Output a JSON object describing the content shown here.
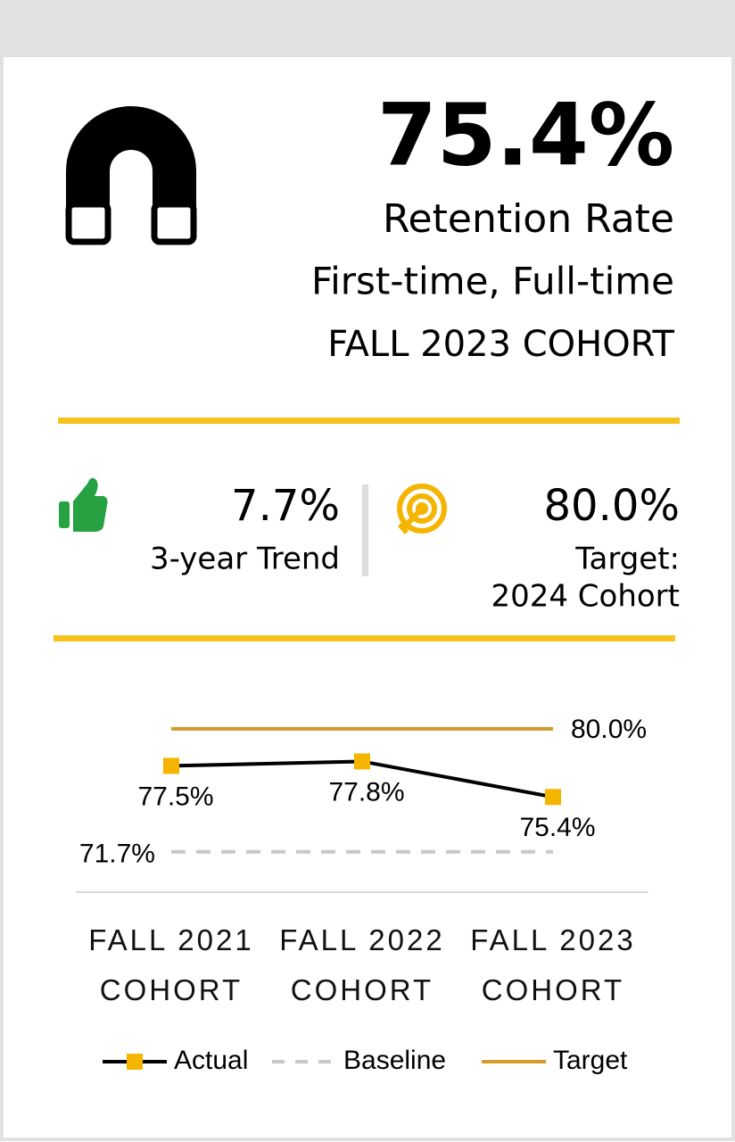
{
  "header": {
    "value": "75.4%",
    "title": "Retention Rate",
    "subtitle": "First-time, Full-time",
    "cohort": "FALL 2023 COHORT"
  },
  "stats": [
    {
      "value": "7.7%",
      "label": "3-year Trend"
    },
    {
      "value": "80.0%",
      "label": [
        "Target:",
        "2024 Cohort"
      ]
    }
  ],
  "chart_data": {
    "type": "line",
    "categories": [
      "FALL 2021 COHORT",
      "FALL 2022 COHORT",
      "FALL 2023 COHORT"
    ],
    "ylim": [
      70,
      81.5
    ],
    "legend": "bottom",
    "series": [
      {
        "name": "Target",
        "color": "#d39a2c",
        "dash": false,
        "values": [
          80.0,
          80.0,
          80.0
        ],
        "value_labels": [
          null,
          null,
          "80.0%"
        ],
        "label_position": "right"
      },
      {
        "name": "Baseline",
        "color": "#c8c8c8",
        "dash": true,
        "values": [
          71.7,
          71.7,
          71.7
        ],
        "value_labels": [
          "71.7%",
          null,
          null
        ],
        "label_position": "left"
      },
      {
        "name": "Actual",
        "color": "#000000",
        "marker_color": "#f5b400",
        "dash": false,
        "values": [
          77.5,
          77.8,
          75.4
        ],
        "value_labels": [
          "77.5%",
          "77.8%",
          "75.4%"
        ],
        "label_position": "below"
      }
    ]
  }
}
